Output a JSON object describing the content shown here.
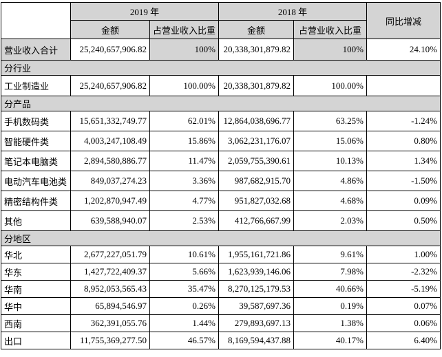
{
  "colors": {
    "shaded": "#d4d4d4",
    "border": "#000000",
    "page_background": "#ffffff"
  },
  "table": {
    "header": {
      "corner": "",
      "year_2019": "2019 年",
      "year_2018": "2018 年",
      "yoy": "同比增减",
      "amount": "金额",
      "ratio": "占营业收入比重"
    },
    "rows": [
      {
        "type": "data",
        "emphasis": true,
        "label": "营业收入合计",
        "amount_2019": "25,240,657,906.82",
        "ratio_2019": "100%",
        "amount_2018": "20,338,301,879.82",
        "ratio_2018": "100%",
        "yoy": "24.10%"
      },
      {
        "type": "section",
        "label": "分行业"
      },
      {
        "type": "data",
        "label": "工业制造业",
        "amount_2019": "25,240,657,906.82",
        "ratio_2019": "100.00%",
        "amount_2018": "20,338,301,879.82",
        "ratio_2018": "100.00%",
        "yoy": ""
      },
      {
        "type": "section",
        "label": "分产品"
      },
      {
        "type": "data",
        "label": "手机数码类",
        "amount_2019": "15,651,332,749.77",
        "ratio_2019": "62.01%",
        "amount_2018": "12,864,038,696.77",
        "ratio_2018": "63.25%",
        "yoy": "-1.24%"
      },
      {
        "type": "data",
        "label": "智能硬件类",
        "amount_2019": "4,003,247,108.49",
        "ratio_2019": "15.86%",
        "amount_2018": "3,062,231,176.07",
        "ratio_2018": "15.06%",
        "yoy": "0.80%"
      },
      {
        "type": "data",
        "label": "笔记本电脑类",
        "amount_2019": "2,894,580,886.77",
        "ratio_2019": "11.47%",
        "amount_2018": "2,059,755,390.61",
        "ratio_2018": "10.13%",
        "yoy": "1.34%"
      },
      {
        "type": "data",
        "label": "电动汽车电池类",
        "amount_2019": "849,037,274.23",
        "ratio_2019": "3.36%",
        "amount_2018": "987,682,915.70",
        "ratio_2018": "4.86%",
        "yoy": "-1.50%"
      },
      {
        "type": "data",
        "label": "精密结构件类",
        "amount_2019": "1,202,870,947.49",
        "ratio_2019": "4.77%",
        "amount_2018": "951,827,032.68",
        "ratio_2018": "4.68%",
        "yoy": "0.09%"
      },
      {
        "type": "data",
        "label": "其他",
        "amount_2019": "639,588,940.07",
        "ratio_2019": "2.53%",
        "amount_2018": "412,766,667.99",
        "ratio_2018": "2.03%",
        "yoy": "0.50%"
      },
      {
        "type": "section",
        "label": "分地区"
      },
      {
        "type": "data",
        "label": "华北",
        "amount_2019": "2,677,227,051.79",
        "ratio_2019": "10.61%",
        "amount_2018": "1,955,161,721.86",
        "ratio_2018": "9.61%",
        "yoy": "1.00%"
      },
      {
        "type": "data",
        "label": "华东",
        "amount_2019": "1,427,722,409.37",
        "ratio_2019": "5.66%",
        "amount_2018": "1,623,939,146.06",
        "ratio_2018": "7.98%",
        "yoy": "-2.32%"
      },
      {
        "type": "data",
        "label": "华南",
        "amount_2019": "8,952,053,565.43",
        "ratio_2019": "35.47%",
        "amount_2018": "8,270,125,179.53",
        "ratio_2018": "40.66%",
        "yoy": "-5.19%"
      },
      {
        "type": "data",
        "label": "华中",
        "amount_2019": "65,894,546.97",
        "ratio_2019": "0.26%",
        "amount_2018": "39,587,697.36",
        "ratio_2018": "0.19%",
        "yoy": "0.07%"
      },
      {
        "type": "data",
        "label": "西南",
        "amount_2019": "362,391,055.76",
        "ratio_2019": "1.44%",
        "amount_2018": "279,893,697.13",
        "ratio_2018": "1.38%",
        "yoy": "0.06%"
      },
      {
        "type": "data",
        "label": "出口",
        "amount_2019": "11,755,369,277.50",
        "ratio_2019": "46.57%",
        "amount_2018": "8,169,594,437.88",
        "ratio_2018": "40.17%",
        "yoy": "6.40%"
      }
    ]
  }
}
